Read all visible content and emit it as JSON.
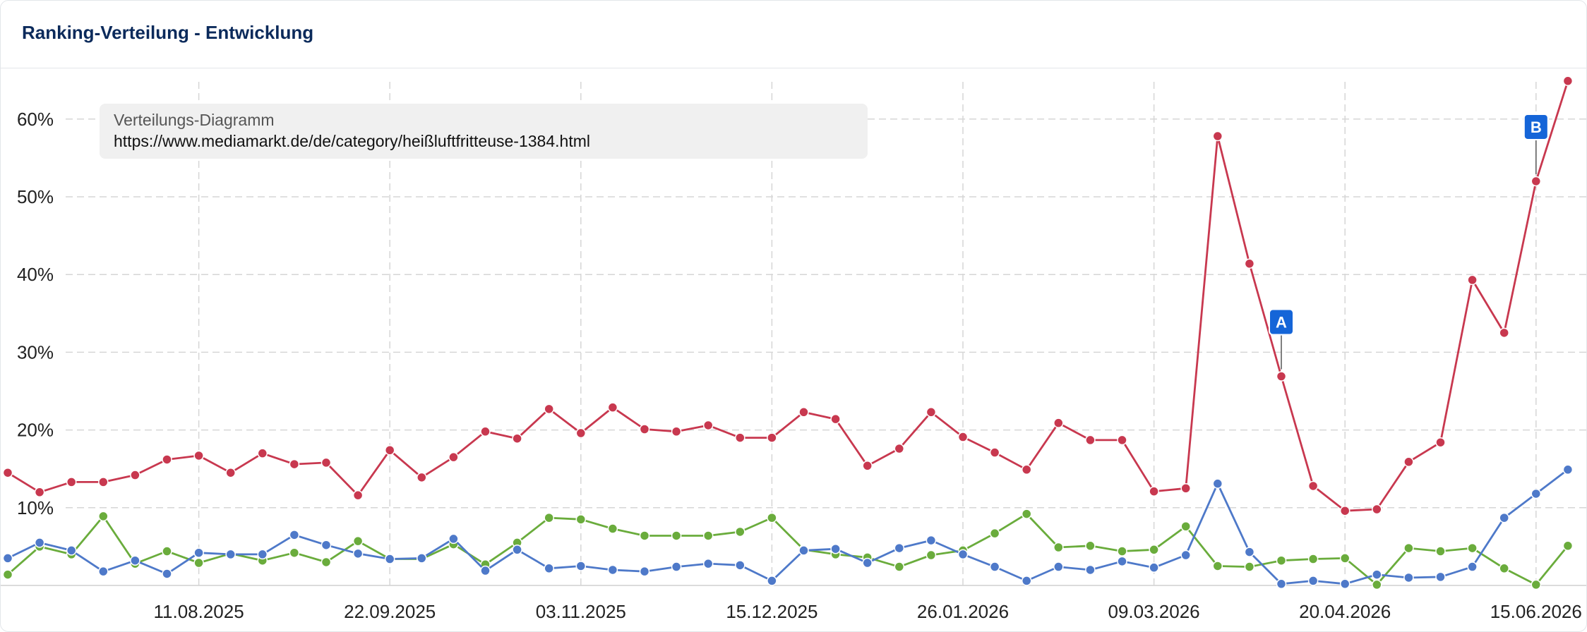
{
  "header": {
    "title": "Ranking-Verteilung - Entwicklung"
  },
  "legend": {
    "title": "Verteilungs-Diagramm",
    "url": "https://www.mediamarkt.de/de/category/heißluftfritteuse-1384.html"
  },
  "chart_data": {
    "type": "line",
    "title": "Ranking-Verteilung - Entwicklung",
    "xlabel": "",
    "ylabel": "",
    "x_start": "2025-06-30",
    "x_tick_labels": [
      "11.08.2025",
      "22.09.2025",
      "03.11.2025",
      "15.12.2025",
      "26.01.2026",
      "09.03.2026",
      "20.04.2026",
      "15.06.2026"
    ],
    "y_tick_labels": [
      "10%",
      "20%",
      "30%",
      "40%",
      "50%",
      "60%"
    ],
    "y_ticks": [
      10,
      20,
      30,
      40,
      50,
      60
    ],
    "ylim": [
      0,
      65
    ],
    "grid": true,
    "legend_position": "top-left",
    "series": [
      {
        "color": "#c8384f",
        "values": [
          14.5,
          12,
          13.3,
          13.3,
          14.2,
          16.2,
          16.7,
          14.5,
          17,
          15.6,
          15.8,
          11.6,
          17.4,
          13.9,
          16.5,
          19.8,
          18.9,
          22.7,
          19.6,
          22.9,
          20.1,
          19.8,
          20.6,
          19,
          19,
          22.3,
          21.4,
          15.4,
          17.6,
          22.3,
          19.1,
          17.1,
          14.9,
          20.9,
          18.7,
          18.7,
          12.1,
          12.5,
          57.8,
          41.4,
          26.9,
          12.8,
          9.6,
          9.8,
          15.9,
          18.4,
          39.3,
          32.5,
          52,
          64.9
        ]
      },
      {
        "color": "#4e79c9",
        "values": [
          3.5,
          5.5,
          4.5,
          1.8,
          3.2,
          1.5,
          4.2,
          4,
          4,
          6.5,
          5.2,
          4.1,
          3.4,
          3.5,
          6,
          1.9,
          4.6,
          2.2,
          2.5,
          2,
          1.8,
          2.4,
          2.8,
          2.6,
          0.6,
          4.5,
          4.7,
          2.9,
          4.8,
          5.8,
          4,
          2.4,
          0.6,
          2.4,
          2,
          3.1,
          2.3,
          3.9,
          13.1,
          4.3,
          0.2,
          0.6,
          0.2,
          1.4,
          1,
          1.1,
          2.4,
          8.7,
          11.8,
          14.9
        ]
      },
      {
        "color": "#6aac3c",
        "values": [
          1.4,
          5,
          4,
          8.9,
          2.8,
          4.4,
          2.9,
          4.1,
          3.2,
          4.2,
          3,
          5.7,
          3.4,
          3.4,
          5.3,
          2.7,
          5.5,
          8.7,
          8.5,
          7.3,
          6.4,
          6.4,
          6.4,
          6.9,
          8.7,
          4.6,
          4,
          3.6,
          2.4,
          3.9,
          4.5,
          6.7,
          9.2,
          4.9,
          5.1,
          4.4,
          4.6,
          7.6,
          2.5,
          2.4,
          3.2,
          3.4,
          3.5,
          0.1,
          4.8,
          4.4,
          4.8,
          2.2,
          0.1,
          5.1
        ]
      }
    ],
    "annotations": [
      {
        "label": "A",
        "series_index": 0,
        "point_index": 40,
        "color": "#1565d8"
      },
      {
        "label": "B",
        "series_index": 0,
        "point_index": 48,
        "color": "#1565d8"
      }
    ]
  }
}
